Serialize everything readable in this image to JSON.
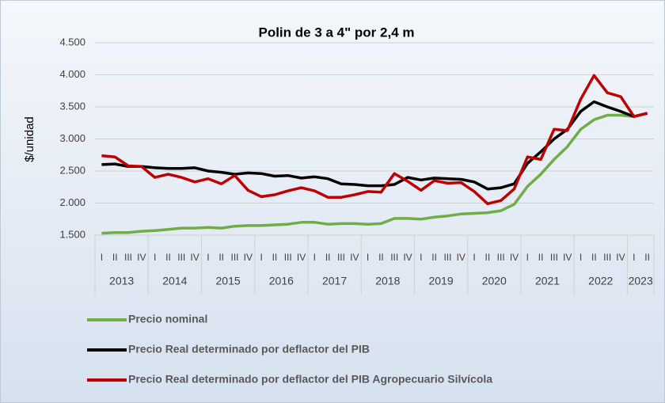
{
  "chart_data": {
    "type": "line",
    "title": "Polin de 3 a 4\" por 2,4 m",
    "y_label": "$/unidad",
    "categories": [
      "I",
      "II",
      "III",
      "IV",
      "I",
      "II",
      "III",
      "IV",
      "I",
      "II",
      "III",
      "IV",
      "I",
      "II",
      "III",
      "IV",
      "I",
      "II",
      "III",
      "IV",
      "I",
      "II",
      "III",
      "IV",
      "I",
      "II",
      "III",
      "IV",
      "I",
      "II",
      "III",
      "IV",
      "I",
      "II",
      "III",
      "IV",
      "I",
      "II",
      "III",
      "IV",
      "I",
      "II"
    ],
    "years": [
      "2013",
      "2014",
      "2015",
      "2016",
      "2017",
      "2018",
      "2019",
      "2020",
      "2021",
      "2022",
      "2023"
    ],
    "ylim": [
      1500,
      4500
    ],
    "yticks": [
      {
        "value": 1500,
        "label": "1.500"
      },
      {
        "value": 2000,
        "label": "2.000"
      },
      {
        "value": 2500,
        "label": "2.500"
      },
      {
        "value": 3000,
        "label": "3.000"
      },
      {
        "value": 3500,
        "label": "3.500"
      },
      {
        "value": 4000,
        "label": "4.000"
      },
      {
        "value": 4500,
        "label": "4.500"
      }
    ],
    "grid": true,
    "legend": "bottom",
    "series": [
      {
        "name": "Precio  nominal",
        "color": "#70ad47",
        "values": [
          1530,
          1540,
          1540,
          1560,
          1570,
          1590,
          1610,
          1610,
          1620,
          1610,
          1640,
          1650,
          1650,
          1660,
          1670,
          1700,
          1700,
          1670,
          1680,
          1680,
          1670,
          1680,
          1760,
          1760,
          1750,
          1780,
          1800,
          1830,
          1840,
          1850,
          1880,
          1980,
          2260,
          2450,
          2680,
          2880,
          3150,
          3300,
          3370,
          3370,
          3350,
          3400
        ]
      },
      {
        "name": "Precio Real determinado por deflactor del  PIB",
        "color": "#000000",
        "values": [
          2600,
          2610,
          2570,
          2570,
          2550,
          2540,
          2540,
          2550,
          2500,
          2480,
          2450,
          2470,
          2460,
          2420,
          2430,
          2390,
          2410,
          2380,
          2300,
          2290,
          2270,
          2270,
          2290,
          2400,
          2360,
          2390,
          2380,
          2370,
          2330,
          2220,
          2240,
          2300,
          2620,
          2800,
          3000,
          3150,
          3430,
          3580,
          3500,
          3430,
          3350,
          3400
        ]
      },
      {
        "name": "Precio Real determinado por deflactor del PIB Agropecuario Silvícola",
        "color": "#c00000",
        "values": [
          2740,
          2720,
          2580,
          2570,
          2400,
          2450,
          2400,
          2330,
          2380,
          2300,
          2430,
          2200,
          2100,
          2130,
          2190,
          2240,
          2190,
          2090,
          2090,
          2130,
          2180,
          2170,
          2460,
          2340,
          2200,
          2350,
          2310,
          2320,
          2180,
          1990,
          2040,
          2220,
          2720,
          2680,
          3150,
          3130,
          3620,
          3990,
          3720,
          3660,
          3350,
          3400
        ]
      }
    ]
  }
}
